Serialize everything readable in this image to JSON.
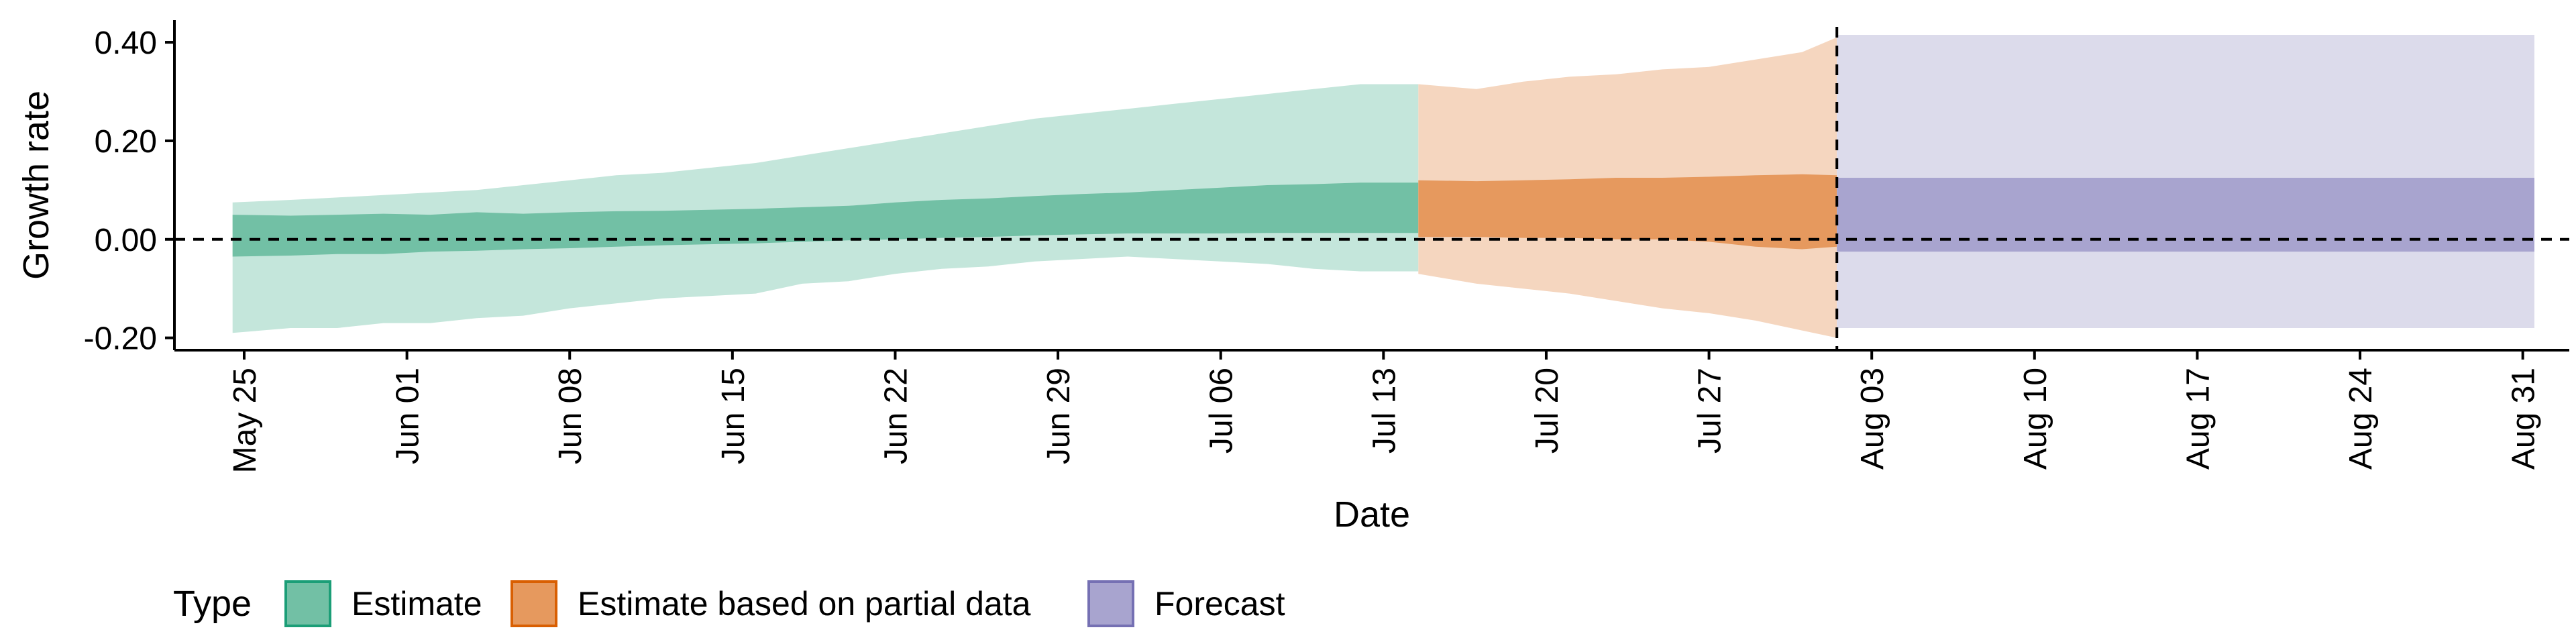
{
  "chart_data": {
    "type": "area",
    "xlabel": "Date",
    "ylabel": "Growth rate",
    "ylim": [
      -0.225,
      0.445
    ],
    "xlim": [
      "2020-05-22",
      "2020-09-02"
    ],
    "y_ticks": [
      {
        "value": -0.2,
        "label": "-0.20"
      },
      {
        "value": 0.0,
        "label": "0.00"
      },
      {
        "value": 0.2,
        "label": "0.20"
      },
      {
        "value": 0.4,
        "label": "0.40"
      }
    ],
    "x_ticks": [
      {
        "date": "2020-05-25",
        "label": "May 25"
      },
      {
        "date": "2020-06-01",
        "label": "Jun 01"
      },
      {
        "date": "2020-06-08",
        "label": "Jun 08"
      },
      {
        "date": "2020-06-15",
        "label": "Jun 15"
      },
      {
        "date": "2020-06-22",
        "label": "Jun 22"
      },
      {
        "date": "2020-06-29",
        "label": "Jun 29"
      },
      {
        "date": "2020-07-06",
        "label": "Jul 06"
      },
      {
        "date": "2020-07-13",
        "label": "Jul 13"
      },
      {
        "date": "2020-07-20",
        "label": "Jul 20"
      },
      {
        "date": "2020-07-27",
        "label": "Jul 27"
      },
      {
        "date": "2020-08-03",
        "label": "Aug 03"
      },
      {
        "date": "2020-08-10",
        "label": "Aug 10"
      },
      {
        "date": "2020-08-17",
        "label": "Aug 17"
      },
      {
        "date": "2020-08-24",
        "label": "Aug 24"
      },
      {
        "date": "2020-08-31",
        "label": "Aug 31"
      }
    ],
    "reference_lines": {
      "horizontal_y": 0.0,
      "vertical_date": "2020-08-01",
      "style": "dashed"
    },
    "legend": {
      "title": "Type",
      "position": "bottom",
      "items": [
        "Estimate",
        "Estimate based on partial data",
        "Forecast"
      ]
    },
    "series": [
      {
        "name": "Estimate",
        "fill_inner": "#72c0a5",
        "fill_outer": "#c4e6db",
        "border": "#1b9e77",
        "x": [
          "2020-05-25",
          "2020-05-27",
          "2020-05-29",
          "2020-05-31",
          "2020-06-02",
          "2020-06-04",
          "2020-06-06",
          "2020-06-08",
          "2020-06-10",
          "2020-06-12",
          "2020-06-14",
          "2020-06-16",
          "2020-06-18",
          "2020-06-20",
          "2020-06-22",
          "2020-06-24",
          "2020-06-26",
          "2020-06-28",
          "2020-06-30",
          "2020-07-02",
          "2020-07-04",
          "2020-07-06",
          "2020-07-08",
          "2020-07-10",
          "2020-07-12",
          "2020-07-14"
        ],
        "outer_lower": [
          -0.19,
          -0.18,
          -0.18,
          -0.17,
          -0.17,
          -0.16,
          -0.155,
          -0.14,
          -0.13,
          -0.12,
          -0.115,
          -0.11,
          -0.09,
          -0.085,
          -0.07,
          -0.06,
          -0.055,
          -0.045,
          -0.04,
          -0.035,
          -0.04,
          -0.045,
          -0.05,
          -0.06,
          -0.065,
          -0.065
        ],
        "inner_lower": [
          -0.035,
          -0.033,
          -0.03,
          -0.03,
          -0.025,
          -0.023,
          -0.02,
          -0.018,
          -0.015,
          -0.012,
          -0.01,
          -0.008,
          -0.005,
          -0.002,
          0.0,
          0.003,
          0.005,
          0.008,
          0.01,
          0.012,
          0.012,
          0.012,
          0.013,
          0.013,
          0.013,
          0.013
        ],
        "inner_upper": [
          0.05,
          0.048,
          0.05,
          0.052,
          0.05,
          0.055,
          0.052,
          0.055,
          0.057,
          0.058,
          0.06,
          0.062,
          0.065,
          0.068,
          0.075,
          0.08,
          0.083,
          0.088,
          0.092,
          0.095,
          0.1,
          0.105,
          0.11,
          0.112,
          0.115,
          0.115
        ],
        "outer_upper": [
          0.075,
          0.08,
          0.085,
          0.09,
          0.095,
          0.1,
          0.11,
          0.12,
          0.13,
          0.135,
          0.145,
          0.155,
          0.17,
          0.185,
          0.2,
          0.215,
          0.23,
          0.245,
          0.255,
          0.265,
          0.275,
          0.285,
          0.295,
          0.305,
          0.315,
          0.315
        ]
      },
      {
        "name": "Estimate based on partial data",
        "fill_inner": "#e6995e",
        "fill_outer": "#f5d6bf",
        "border": "#d95f02",
        "x": [
          "2020-07-15",
          "2020-07-17",
          "2020-07-19",
          "2020-07-21",
          "2020-07-23",
          "2020-07-25",
          "2020-07-27",
          "2020-07-29",
          "2020-07-31",
          "2020-08-01"
        ],
        "outer_lower": [
          -0.07,
          -0.09,
          -0.1,
          -0.11,
          -0.125,
          -0.14,
          -0.15,
          -0.165,
          -0.185,
          -0.2
        ],
        "inner_lower": [
          0.005,
          0.005,
          0.003,
          0.003,
          0.0,
          0.0,
          -0.005,
          -0.015,
          -0.02,
          -0.015
        ],
        "inner_upper": [
          0.12,
          0.118,
          0.12,
          0.122,
          0.125,
          0.125,
          0.127,
          0.13,
          0.132,
          0.13
        ],
        "outer_upper": [
          0.315,
          0.305,
          0.32,
          0.33,
          0.335,
          0.345,
          0.35,
          0.365,
          0.38,
          0.41
        ]
      },
      {
        "name": "Forecast",
        "fill_inner": "#a8a4cf",
        "fill_outer": "#dcdbeb",
        "border": "#7570b3",
        "x": [
          "2020-08-02",
          "2020-08-31"
        ],
        "outer_lower": [
          -0.18,
          -0.18
        ],
        "inner_lower": [
          -0.025,
          -0.025
        ],
        "inner_upper": [
          0.125,
          0.125
        ],
        "outer_upper": [
          0.415,
          0.415
        ]
      }
    ]
  }
}
